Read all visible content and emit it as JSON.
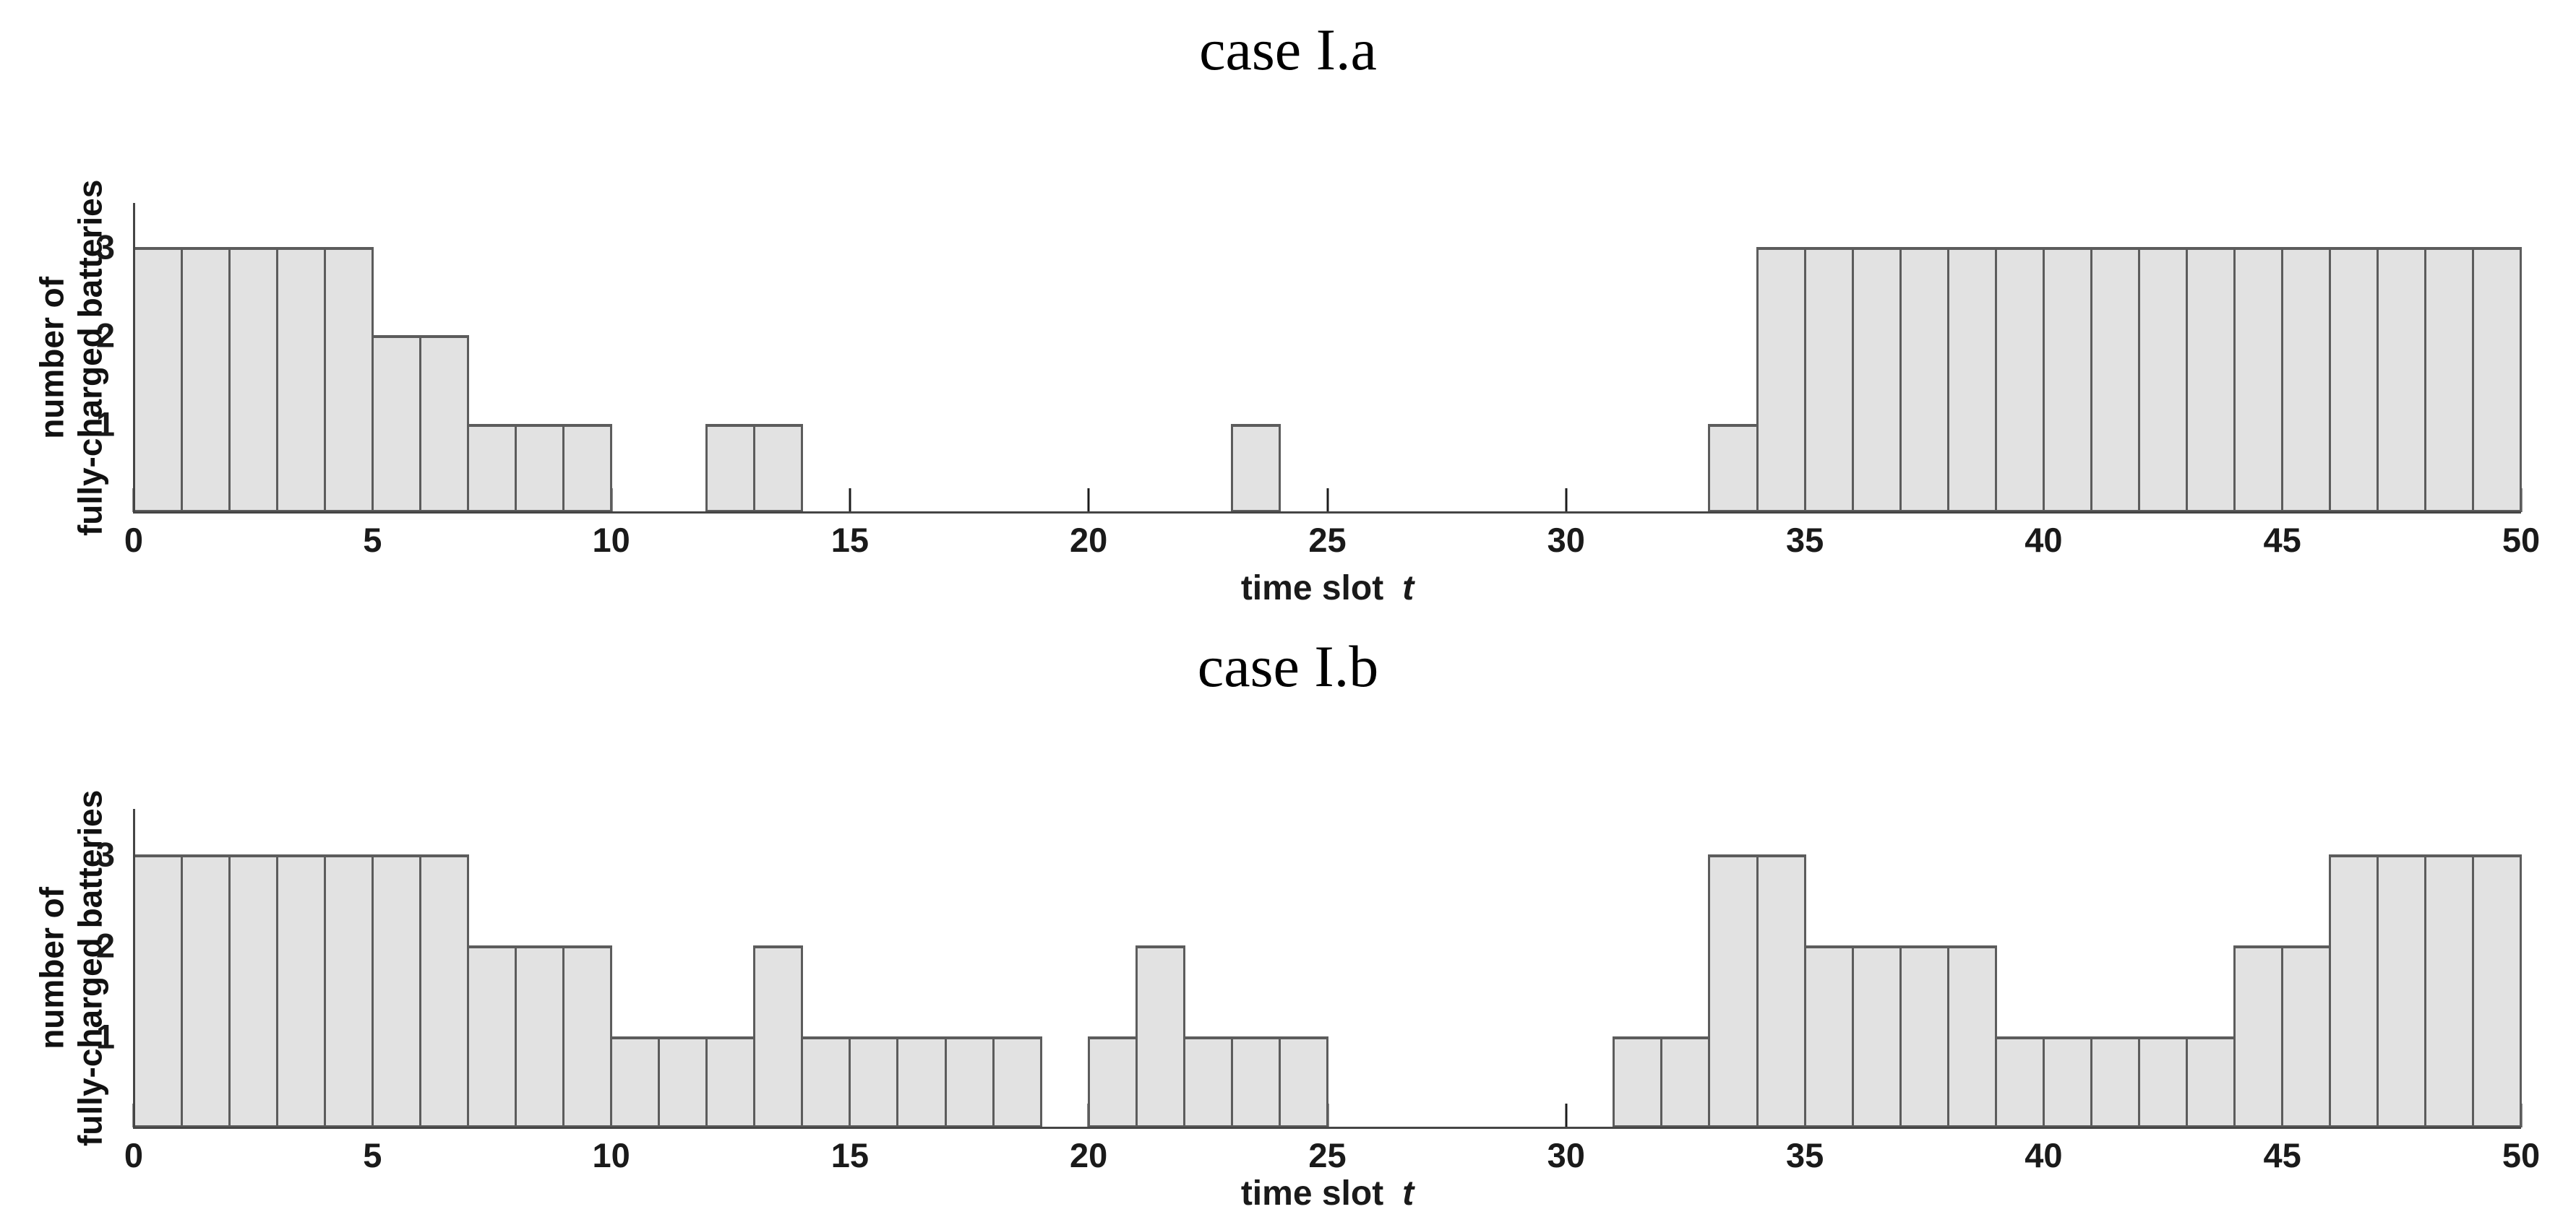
{
  "chart_data": [
    {
      "type": "bar",
      "title": "case I.a",
      "xlabel": "time slot",
      "xlabel_var": "t",
      "ylabel_line1": "number of",
      "ylabel_line2": "fully-charged batteries",
      "xlim": [
        0,
        50
      ],
      "ylim": [
        0,
        3.5
      ],
      "bin_width": 1,
      "x_ticks": [
        0,
        5,
        10,
        15,
        20,
        25,
        30,
        35,
        40,
        45,
        50
      ],
      "y_ticks": [
        1,
        2,
        3
      ],
      "grid": false,
      "values": [
        3,
        3,
        3,
        3,
        3,
        2,
        2,
        1,
        1,
        1,
        0,
        0,
        1,
        1,
        0,
        0,
        0,
        0,
        0,
        0,
        0,
        0,
        0,
        1,
        0,
        0,
        0,
        0,
        0,
        0,
        0,
        0,
        0,
        1,
        3,
        3,
        3,
        3,
        3,
        3,
        3,
        3,
        3,
        3,
        3,
        3,
        3,
        3,
        3,
        3
      ]
    },
    {
      "type": "bar",
      "title": "case I.b",
      "xlabel": "time slot",
      "xlabel_var": "t",
      "ylabel_line1": "number of",
      "ylabel_line2": "fully-charged batteries",
      "xlim": [
        0,
        50
      ],
      "ylim": [
        0,
        3.5
      ],
      "bin_width": 1,
      "x_ticks": [
        0,
        5,
        10,
        15,
        20,
        25,
        30,
        35,
        40,
        45,
        50
      ],
      "y_ticks": [
        1,
        2,
        3
      ],
      "grid": false,
      "values": [
        3,
        3,
        3,
        3,
        3,
        3,
        3,
        2,
        2,
        2,
        1,
        1,
        1,
        2,
        1,
        1,
        1,
        1,
        1,
        0,
        1,
        2,
        1,
        1,
        1,
        0,
        0,
        0,
        0,
        0,
        0,
        1,
        1,
        3,
        3,
        2,
        2,
        2,
        2,
        1,
        1,
        1,
        1,
        1,
        2,
        2,
        3,
        3,
        3,
        3
      ]
    }
  ],
  "colors": {
    "background": "#ffffff",
    "bar_fill": "#e2e2e2",
    "bar_border": "#5c5c5c",
    "axis": "#454545",
    "tick": "#1c1c1c",
    "text": "#1a1a1a"
  }
}
